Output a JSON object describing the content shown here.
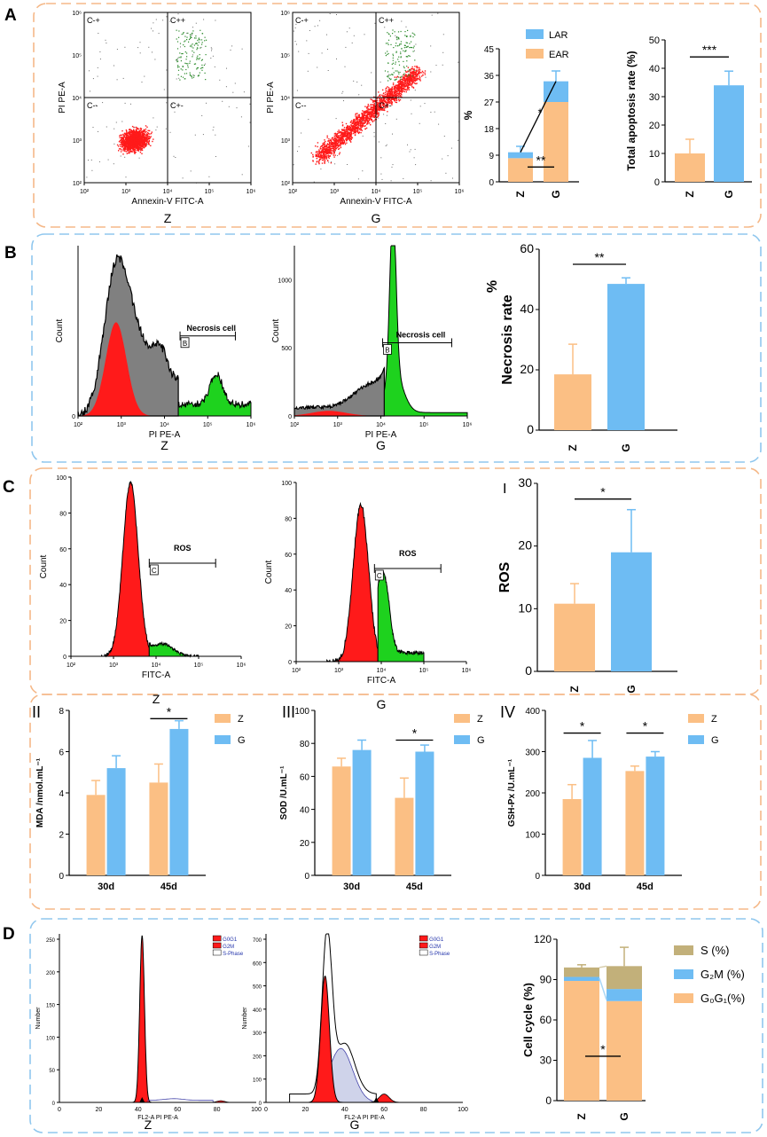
{
  "colors": {
    "z": "#fbbf84",
    "g": "#6ebcf3",
    "orange_frame": "#f5b888",
    "blue_frame": "#90c7ee",
    "red": "#ff1a1a",
    "green": "#1ed21e",
    "gray": "#808080",
    "olive": "#c2b07a"
  },
  "panels": {
    "A": {
      "label": "A"
    },
    "B": {
      "label": "B"
    },
    "C": {
      "label": "C"
    },
    "D": {
      "label": "D"
    }
  },
  "flow": {
    "annexin": {
      "xlabel": "Annexin-V FITC-A",
      "ylabel": "PI PE-A",
      "quadrants": [
        "C-+",
        "C++",
        "C--",
        "C+-"
      ],
      "xticks": [
        "10²",
        "10³",
        "10⁴",
        "10⁵",
        "10⁶"
      ],
      "yticks": [
        "10²",
        "10³",
        "10⁴",
        "10⁵",
        "10⁶"
      ],
      "samples": [
        "Z",
        "G"
      ]
    },
    "necrosis": {
      "xlabel": "PI PE-A",
      "ylabel": "Count",
      "gate_label": "Necrosis cell",
      "gate_letter": "B",
      "xticks": [
        "10²",
        "10³",
        "10⁴",
        "10⁵",
        "10⁶"
      ],
      "g_yticks": [
        "0",
        "500",
        "1000"
      ],
      "samples": [
        "Z",
        "G"
      ]
    },
    "ros": {
      "xlabel": "FITC-A",
      "ylabel": "Count",
      "gate_label": "ROS",
      "gate_letter": "C",
      "xticks": [
        "10²",
        "10³",
        "10⁴",
        "10⁵",
        "10⁶"
      ],
      "yticks": [
        "0",
        "20",
        "40",
        "60",
        "80",
        "100"
      ],
      "samples": [
        "Z",
        "G"
      ]
    },
    "cellcycle": {
      "xlabel": "FL2-A PI PE-A",
      "ylabel": "Number",
      "legend": [
        "G0G1",
        "G2M",
        "S-Phase"
      ],
      "xticks": [
        "0",
        "20",
        "40",
        "60",
        "80",
        "100"
      ],
      "z_yticks": [
        "0",
        "50",
        "100",
        "150",
        "200",
        "250"
      ],
      "g_yticks": [
        "0",
        "100",
        "200",
        "300",
        "400",
        "500",
        "600",
        "700"
      ],
      "samples": [
        "Z",
        "G"
      ]
    }
  },
  "chart_data": [
    {
      "id": "apoptosis_stacked",
      "type": "bar",
      "categories": [
        "Z",
        "G"
      ],
      "series": [
        {
          "name": "EAR",
          "values": [
            8,
            27
          ],
          "err": [
            0,
            0
          ]
        },
        {
          "name": "LAR",
          "values": [
            2,
            7
          ],
          "err": [
            2,
            3.5
          ]
        }
      ],
      "ylabel": "%",
      "ylim": [
        0,
        45
      ],
      "yticks": [
        0,
        9,
        18,
        27,
        36,
        45
      ],
      "legend": [
        "LAR",
        "EAR"
      ],
      "annotations": [
        "*",
        "**"
      ]
    },
    {
      "id": "total_apoptosis",
      "type": "bar",
      "categories": [
        "Z",
        "G"
      ],
      "values": [
        10,
        34
      ],
      "err": [
        5,
        5
      ],
      "ylabel": "Total apoptosis rate (%)",
      "ylim": [
        0,
        50
      ],
      "yticks": [
        0,
        10,
        20,
        30,
        40,
        50
      ],
      "annotations": [
        "***"
      ]
    },
    {
      "id": "necrosis_rate",
      "type": "bar",
      "categories": [
        "Z",
        "G"
      ],
      "values": [
        18.5,
        48.5
      ],
      "err": [
        10,
        2
      ],
      "ylabel": "Necrosis rate",
      "unit_label": "%",
      "ylim": [
        0,
        60
      ],
      "yticks": [
        0,
        20,
        40,
        60
      ],
      "annotations": [
        "**"
      ]
    },
    {
      "id": "ros",
      "type": "bar",
      "title": "I",
      "categories": [
        "Z",
        "G"
      ],
      "values": [
        10.8,
        19
      ],
      "err": [
        3.2,
        6.8
      ],
      "ylabel": "ROS",
      "ylim": [
        0,
        30
      ],
      "yticks": [
        0,
        10,
        20,
        30
      ],
      "annotations": [
        "*"
      ]
    },
    {
      "id": "mda",
      "type": "bar",
      "title": "II",
      "categories": [
        "30d",
        "45d"
      ],
      "series": [
        {
          "name": "Z",
          "values": [
            3.9,
            4.5
          ],
          "err": [
            0.7,
            0.9
          ]
        },
        {
          "name": "G",
          "values": [
            5.2,
            7.1
          ],
          "err": [
            0.6,
            0.4
          ]
        }
      ],
      "ylabel": "MDA /nmol.mL⁻¹",
      "ylim": [
        0,
        8
      ],
      "yticks": [
        0,
        2,
        4,
        6,
        8
      ],
      "annotations": [
        "*"
      ]
    },
    {
      "id": "sod",
      "type": "bar",
      "title": "III",
      "categories": [
        "30d",
        "45d"
      ],
      "series": [
        {
          "name": "Z",
          "values": [
            66,
            47
          ],
          "err": [
            5,
            12
          ]
        },
        {
          "name": "G",
          "values": [
            76,
            75
          ],
          "err": [
            6,
            4
          ]
        }
      ],
      "ylabel": "SOD /U.mL⁻¹",
      "ylim": [
        0,
        100
      ],
      "yticks": [
        0,
        20,
        40,
        60,
        80,
        100
      ],
      "annotations": [
        "*"
      ]
    },
    {
      "id": "gshpx",
      "type": "bar",
      "title": "IV",
      "categories": [
        "30d",
        "45d"
      ],
      "series": [
        {
          "name": "Z",
          "values": [
            185,
            253
          ],
          "err": [
            35,
            12
          ]
        },
        {
          "name": "G",
          "values": [
            285,
            288
          ],
          "err": [
            42,
            12
          ]
        }
      ],
      "ylabel": "GSH-Px /U.mL⁻¹",
      "ylim": [
        0,
        400
      ],
      "yticks": [
        0,
        100,
        200,
        300,
        400
      ],
      "annotations": [
        "*",
        "*"
      ]
    },
    {
      "id": "cell_cycle",
      "type": "bar",
      "categories": [
        "Z",
        "G"
      ],
      "series": [
        {
          "name": "G₀G₁(%)",
          "values": [
            89,
            74
          ]
        },
        {
          "name": "G₂M (%)",
          "values": [
            3,
            9
          ]
        },
        {
          "name": "S (%)",
          "values": [
            7,
            17
          ]
        }
      ],
      "err": [
        2,
        14
      ],
      "ylabel": "Cell cycle (%)",
      "ylim": [
        0,
        120
      ],
      "yticks": [
        0,
        30,
        60,
        90,
        120
      ],
      "annotations": [
        "*"
      ]
    }
  ]
}
